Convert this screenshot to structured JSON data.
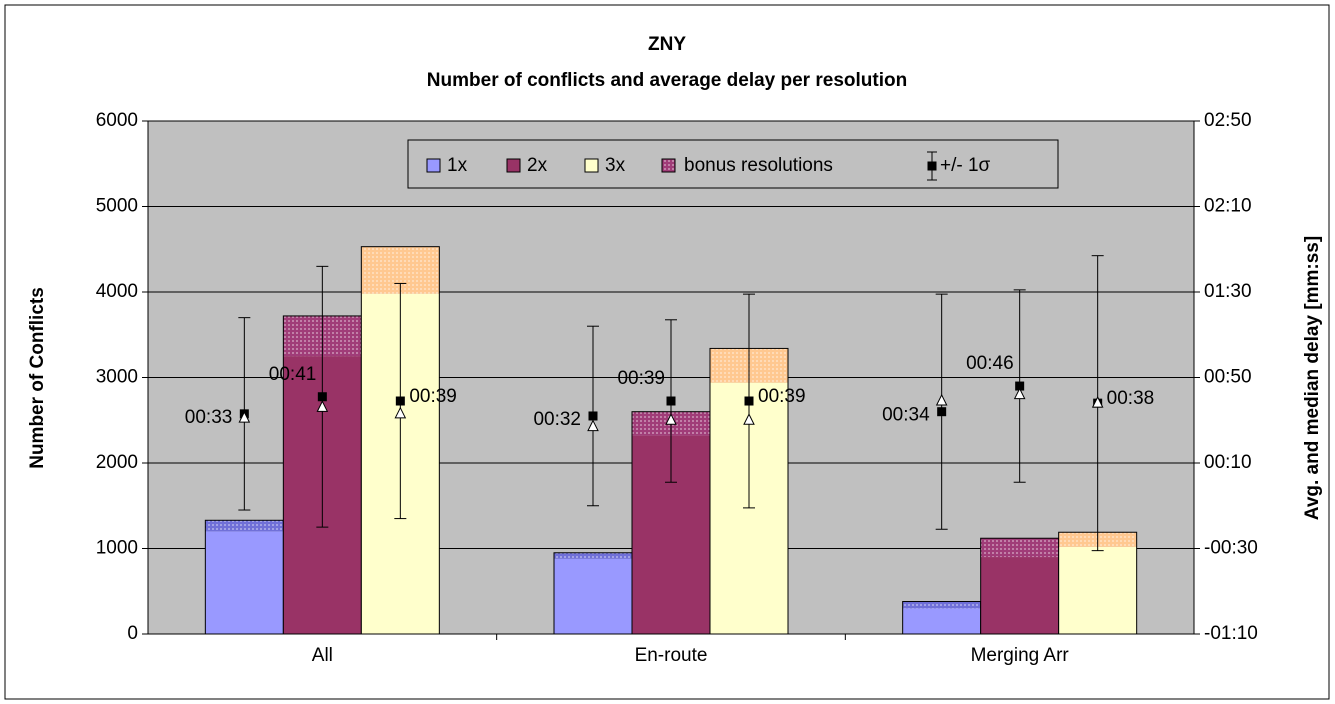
{
  "chart_data": {
    "type": "bar",
    "title": "ZNY",
    "subtitle": "Number of conflicts and average delay per resolution",
    "ylabel": "Number of Conflicts",
    "y2label": "Avg. and median delay [mm:ss]",
    "categories": [
      "All",
      "En-route",
      "Merging Arr"
    ],
    "ylim": [
      0,
      6000
    ],
    "yticks": [
      0,
      1000,
      2000,
      3000,
      4000,
      5000,
      6000
    ],
    "y2lim": [
      -70,
      170
    ],
    "y2ticks": [
      {
        "value": -70,
        "label": "-01:10"
      },
      {
        "value": -30,
        "label": "-00:30"
      },
      {
        "value": 10,
        "label": "00:10"
      },
      {
        "value": 50,
        "label": "00:50"
      },
      {
        "value": 90,
        "label": "01:30"
      },
      {
        "value": 130,
        "label": "02:10"
      },
      {
        "value": 170,
        "label": "02:50"
      }
    ],
    "grid": true,
    "bonus_name": "bonus resolutions",
    "error_name": "+/- 1σ",
    "series": [
      {
        "name": "1x",
        "color": "#9999ff",
        "bonus_color": "#7070d8",
        "values": [
          1200,
          880,
          300
        ],
        "bonus": [
          130,
          70,
          80
        ],
        "mean": [
          33,
          32,
          34
        ],
        "mean_labels": [
          "00:33",
          "00:32",
          "00:34"
        ],
        "sigma": [
          45,
          42,
          55
        ],
        "median": [
          31,
          27,
          39
        ],
        "axis": "y2"
      },
      {
        "name": "2x",
        "color": "#993366",
        "bonus_color": "#a03c78",
        "values": [
          3250,
          2320,
          900
        ],
        "bonus": [
          470,
          280,
          220
        ],
        "mean": [
          41,
          39,
          46
        ],
        "mean_labels": [
          "00:41",
          "00:39",
          "00:46"
        ],
        "sigma": [
          61,
          38,
          45
        ],
        "median": [
          36,
          30,
          42
        ],
        "axis": "y2"
      },
      {
        "name": "3x",
        "color": "#ffffcc",
        "bonus_color": "#ffc890",
        "values": [
          3980,
          2940,
          1020
        ],
        "bonus": [
          550,
          400,
          170
        ],
        "mean": [
          39,
          39,
          38
        ],
        "mean_labels": [
          "00:39",
          "00:39",
          "00:38"
        ],
        "sigma": [
          55,
          50,
          69
        ],
        "median": [
          33,
          30,
          38
        ],
        "axis": "y2"
      }
    ]
  }
}
